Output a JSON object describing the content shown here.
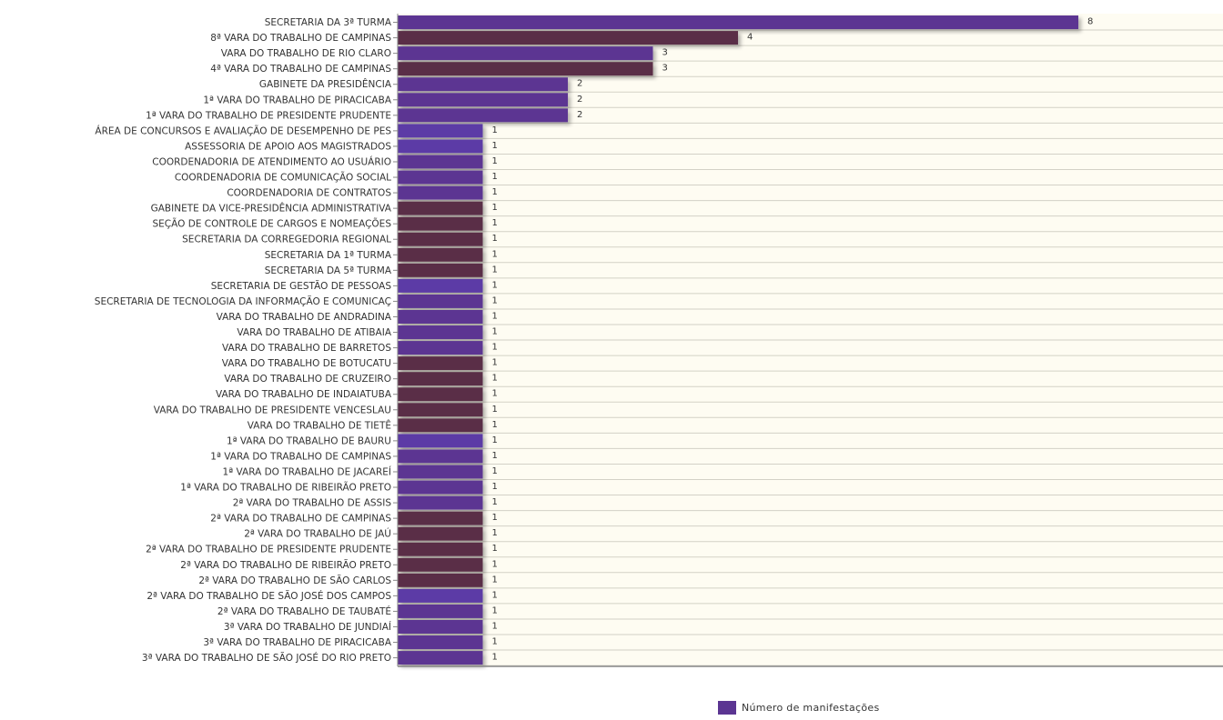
{
  "chart_data": {
    "type": "bar",
    "orientation": "horizontal",
    "categories": [
      "SECRETARIA DA 3ª TURMA",
      "8ª VARA DO TRABALHO DE CAMPINAS",
      "VARA DO TRABALHO DE RIO CLARO",
      "4ª VARA DO TRABALHO DE CAMPINAS",
      "GABINETE DA PRESIDÊNCIA",
      "1ª VARA DO TRABALHO DE PIRACICABA",
      "1ª VARA DO TRABALHO DE PRESIDENTE PRUDENTE",
      "ÁREA DE CONCURSOS E AVALIAÇÃO DE DESEMPENHO DE PES",
      "ASSESSORIA DE APOIO AOS MAGISTRADOS",
      "COORDENADORIA DE ATENDIMENTO AO USUÁRIO",
      "COORDENADORIA DE COMUNICAÇÃO SOCIAL",
      "COORDENADORIA DE CONTRATOS",
      "GABINETE DA VICE-PRESIDÊNCIA ADMINISTRATIVA",
      "SEÇÃO DE CONTROLE DE CARGOS E NOMEAÇÕES",
      "SECRETARIA DA CORREGEDORIA REGIONAL",
      "SECRETARIA DA 1ª TURMA",
      "SECRETARIA DA 5ª TURMA",
      "SECRETARIA DE GESTÃO DE PESSOAS",
      "SECRETARIA DE TECNOLOGIA DA INFORMAÇÃO E COMUNICAÇ",
      "VARA DO TRABALHO DE ANDRADINA",
      "VARA DO TRABALHO DE ATIBAIA",
      "VARA DO TRABALHO DE BARRETOS",
      "VARA DO TRABALHO DE BOTUCATU",
      "VARA DO TRABALHO DE CRUZEIRO",
      "VARA DO TRABALHO DE INDAIATUBA",
      "VARA DO TRABALHO DE PRESIDENTE VENCESLAU",
      "VARA DO TRABALHO DE TIETÊ",
      "1ª VARA DO TRABALHO DE BAURU",
      "1ª VARA DO TRABALHO DE CAMPINAS",
      "1ª VARA DO TRABALHO DE JACAREÍ",
      "1ª VARA DO TRABALHO DE RIBEIRÃO PRETO",
      "2ª VARA DO TRABALHO DE ASSIS",
      "2ª VARA DO TRABALHO DE CAMPINAS",
      "2ª VARA DO TRABALHO DE JAÚ",
      "2ª VARA DO TRABALHO DE PRESIDENTE PRUDENTE",
      "2ª VARA DO TRABALHO DE RIBEIRÃO PRETO",
      "2ª VARA DO TRABALHO DE SÃO CARLOS",
      "2ª VARA DO TRABALHO DE SÃO JOSÉ DOS CAMPOS",
      "2ª VARA DO TRABALHO DE TAUBATÉ",
      "3ª VARA DO TRABALHO DE JUNDIAÍ",
      "3ª VARA DO TRABALHO DE PIRACICABA",
      "3ª VARA DO TRABALHO DE SÃO JOSÉ DO RIO PRETO"
    ],
    "series": [
      {
        "name": "Número de manifestações",
        "values": [
          8,
          4,
          3,
          3,
          2,
          2,
          2,
          1,
          1,
          1,
          1,
          1,
          1,
          1,
          1,
          1,
          1,
          1,
          1,
          1,
          1,
          1,
          1,
          1,
          1,
          1,
          1,
          1,
          1,
          1,
          1,
          1,
          1,
          1,
          1,
          1,
          1,
          1,
          1,
          1,
          1,
          1
        ]
      }
    ],
    "xlim": [
      0,
      9.7
    ],
    "grid": true,
    "legend_position": "bottom-center",
    "colors": {
      "palette": [
        "#5b3592",
        "#5a2f46",
        "#5b3592",
        "#5a2f46",
        "#5b3592",
        "#5b3592",
        "#5b3592",
        "#5b3aa6",
        "#5b3aa6",
        "#5b3592",
        "#5b3592",
        "#5b3592",
        "#5a2f46",
        "#5a2f46",
        "#5a2f46",
        "#5a2f46",
        "#5a2f46",
        "#5b3aa6",
        "#5b3592",
        "#5b3592",
        "#5b3592",
        "#5b3592",
        "#5a2f46",
        "#5a2f46",
        "#5a2f46",
        "#5a2f46",
        "#5a2f46",
        "#5b3aa6",
        "#5b3592",
        "#5b3592",
        "#5b3592",
        "#5b3592",
        "#5a2f46",
        "#5a2f46",
        "#5a2f46",
        "#5a2f46",
        "#5a2f46",
        "#5b3aa6",
        "#5b3592",
        "#5b3592",
        "#5b3592",
        "#5b3592"
      ],
      "plot_background": "#fefcf2",
      "row_line": "#d3d1c6",
      "legend_swatch": "#5b3592"
    }
  },
  "legend": {
    "label": "Número de manifestações"
  }
}
